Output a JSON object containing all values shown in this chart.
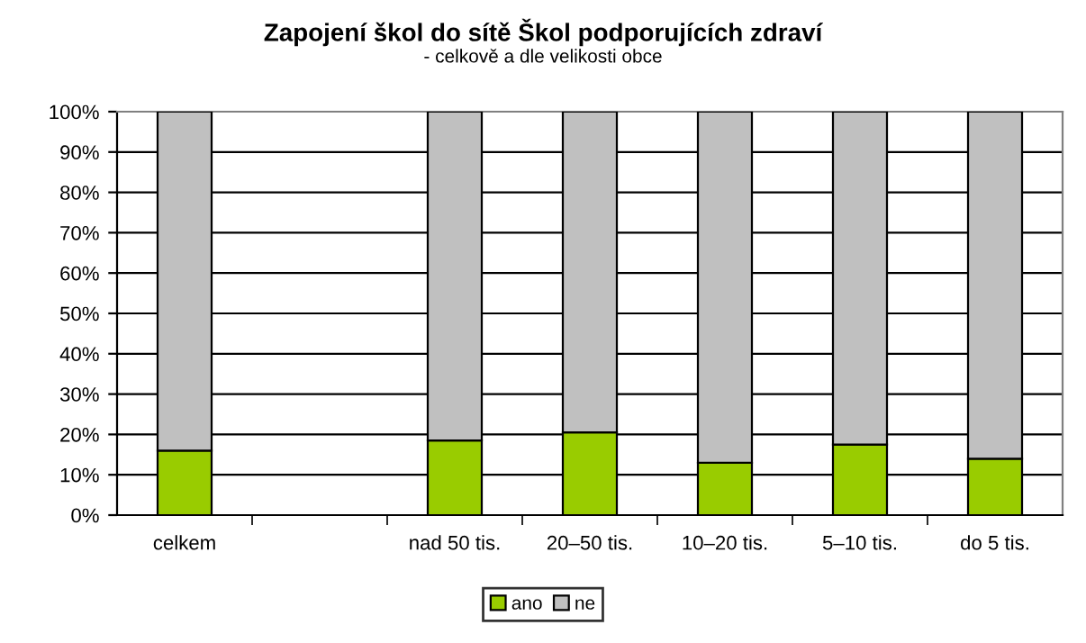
{
  "chart_data": {
    "type": "bar",
    "title": "Zapojení škol do sítě Škol podporujících zdraví",
    "subtitle": "- celkově a dle velikosti obce",
    "categories": [
      "celkem",
      null,
      "nad 50 tis.",
      "20–50 tis.",
      "10–20 tis.",
      "5–10 tis.",
      "do 5 tis."
    ],
    "series": [
      {
        "name": "ano",
        "color": "#99cc00",
        "values": [
          16,
          null,
          18.5,
          20.5,
          13,
          17.5,
          14
        ]
      },
      {
        "name": "ne",
        "color": "#c0c0c0",
        "values": [
          84,
          null,
          81.5,
          79.5,
          87,
          82.5,
          86
        ]
      }
    ],
    "stacked": true,
    "ylim": [
      0,
      100
    ],
    "yticks": [
      {
        "value": 0,
        "label": "0%"
      },
      {
        "value": 10,
        "label": "10%"
      },
      {
        "value": 20,
        "label": "20%"
      },
      {
        "value": 30,
        "label": "30%"
      },
      {
        "value": 40,
        "label": "40%"
      },
      {
        "value": 50,
        "label": "50%"
      },
      {
        "value": 60,
        "label": "60%"
      },
      {
        "value": 70,
        "label": "70%"
      },
      {
        "value": 80,
        "label": "80%"
      },
      {
        "value": 90,
        "label": "90%"
      },
      {
        "value": 100,
        "label": "100%"
      }
    ],
    "grid": "y",
    "legend": "bottom"
  }
}
